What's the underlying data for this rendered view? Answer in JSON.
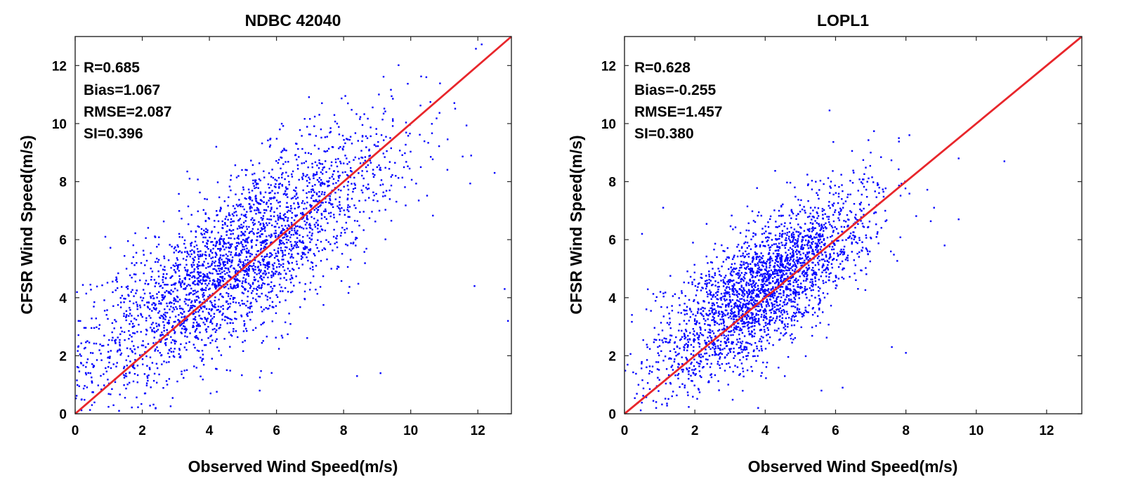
{
  "chart_data": [
    {
      "type": "scatter",
      "title": "NDBC 42040",
      "xlabel": "Observed Wind Speed(m/s)",
      "ylabel": "CFSR Wind Speed(m/s)",
      "xlim": [
        0,
        13
      ],
      "ylim": [
        0,
        13
      ],
      "xticks": [
        "0",
        "2",
        "4",
        "6",
        "8",
        "10",
        "12"
      ],
      "yticks": [
        "0",
        "2",
        "4",
        "6",
        "8",
        "10",
        "12"
      ],
      "stats": [
        "R=0.685",
        "Bias=1.067",
        "RMSE=2.087",
        "SI=0.396"
      ],
      "reference_line": {
        "x": [
          0,
          13
        ],
        "y": [
          0,
          13
        ],
        "color": "#e8262b"
      },
      "point_color": "#0000ff",
      "distribution": {
        "n": 2800,
        "x_mean": 4.9,
        "x_sd": 2.3,
        "y_intercept": 1.6,
        "y_slope": 0.76,
        "y_sd": 1.35
      },
      "sample_points": [
        [
          5.8,
          9.2
        ],
        [
          6.1,
          9.8
        ],
        [
          6.6,
          9.3
        ],
        [
          3.1,
          6.2
        ],
        [
          0.9,
          6.1
        ],
        [
          9.0,
          8.5
        ],
        [
          10.3,
          8.5
        ],
        [
          11.8,
          8.9
        ],
        [
          12.5,
          8.3
        ],
        [
          12.9,
          3.2
        ],
        [
          12.8,
          4.3
        ],
        [
          11.9,
          4.4
        ],
        [
          8.4,
          1.3
        ],
        [
          9.1,
          1.4
        ],
        [
          0.1,
          3.2
        ],
        [
          0.5,
          0.3
        ],
        [
          2.4,
          0.2
        ],
        [
          5.5,
          0.8
        ],
        [
          7.2,
          7.6
        ]
      ],
      "grid": false
    },
    {
      "type": "scatter",
      "title": "LOPL1",
      "xlabel": "Observed Wind Speed(m/s)",
      "ylabel": "CFSR Wind Speed(m/s)",
      "xlim": [
        0,
        13
      ],
      "ylim": [
        0,
        13
      ],
      "xticks": [
        "0",
        "2",
        "4",
        "6",
        "8",
        "10",
        "12"
      ],
      "yticks": [
        "0",
        "2",
        "4",
        "6",
        "8",
        "10",
        "12"
      ],
      "stats": [
        "R=0.628",
        "Bias=-0.255",
        "RMSE=1.457",
        "SI=0.380"
      ],
      "reference_line": {
        "x": [
          0,
          13
        ],
        "y": [
          0,
          13
        ],
        "color": "#e8262b"
      },
      "point_color": "#0000ff",
      "distribution": {
        "n": 2600,
        "x_mean": 3.9,
        "x_sd": 1.5,
        "y_intercept": 1.2,
        "y_slope": 0.8,
        "y_sd": 1.1
      },
      "sample_points": [
        [
          10.8,
          8.7
        ],
        [
          9.5,
          8.8
        ],
        [
          8.1,
          9.6
        ],
        [
          7.8,
          9.5
        ],
        [
          7.0,
          9.0
        ],
        [
          8.0,
          2.1
        ],
        [
          7.6,
          2.3
        ],
        [
          6.2,
          0.9
        ],
        [
          5.6,
          0.8
        ],
        [
          1.1,
          7.1
        ],
        [
          0.5,
          6.2
        ],
        [
          0.9,
          0.2
        ],
        [
          3.8,
          0.2
        ],
        [
          9.1,
          5.8
        ],
        [
          9.5,
          6.7
        ],
        [
          8.8,
          7.1
        ]
      ],
      "grid": false
    }
  ]
}
